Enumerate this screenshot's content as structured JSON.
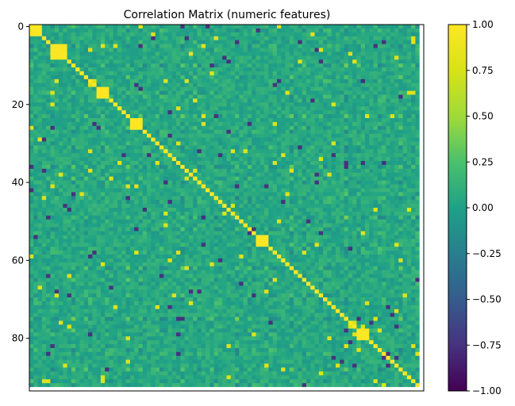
{
  "chart_data": {
    "type": "heatmap",
    "title": "Correlation Matrix (numeric features)",
    "matrix_size": 94,
    "nan_index": 93,
    "y_ticks": [
      0,
      20,
      40,
      60,
      80
    ],
    "x_ticks": [],
    "colormap": "viridis",
    "vmin": -1.0,
    "vmax": 1.0,
    "colorbar_ticks": [
      "1.00",
      "0.75",
      "0.50",
      "0.25",
      "0.00",
      "−0.25",
      "−0.50",
      "−0.75",
      "−1.00"
    ],
    "colorbar_values": [
      1.0,
      0.75,
      0.5,
      0.25,
      0.0,
      -0.25,
      -0.5,
      -0.75,
      -1.0
    ],
    "highly_correlated_blocks": [
      [
        0,
        2
      ],
      [
        5,
        8
      ],
      [
        16,
        18
      ],
      [
        24,
        26
      ],
      [
        54,
        56
      ],
      [
        78,
        80
      ]
    ],
    "nan_row_col_present": true
  }
}
